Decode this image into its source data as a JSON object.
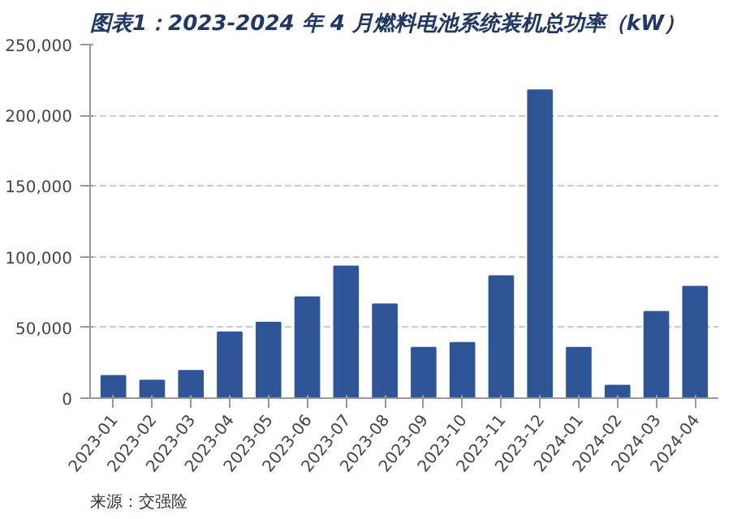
{
  "chart_data": {
    "type": "bar",
    "title": "图表1：2023-2024 年 4 月燃料电池系统装机总功率（kW）",
    "categories": [
      "2023-01",
      "2023-02",
      "2023-03",
      "2023-04",
      "2023-05",
      "2023-06",
      "2023-07",
      "2023-08",
      "2023-09",
      "2023-10",
      "2023-11",
      "2023-12",
      "2024-01",
      "2024-02",
      "2024-03",
      "2024-04"
    ],
    "values": [
      15800,
      12400,
      19300,
      46600,
      53500,
      71400,
      93200,
      66400,
      35700,
      39100,
      86300,
      217700,
      35700,
      8900,
      61000,
      78900
    ],
    "color": "#2e5597",
    "ylim": [
      0,
      250000
    ],
    "yticks": [
      {
        "value": 0,
        "label": "0"
      },
      {
        "value": 50000,
        "label": "50,000"
      },
      {
        "value": 100000,
        "label": "100,000"
      },
      {
        "value": 150000,
        "label": "150,000"
      },
      {
        "value": 200000,
        "label": "200,000"
      },
      {
        "value": 250000,
        "label": "250,000"
      }
    ],
    "grid": "y",
    "annotations": [
      "来源：交强险"
    ]
  }
}
